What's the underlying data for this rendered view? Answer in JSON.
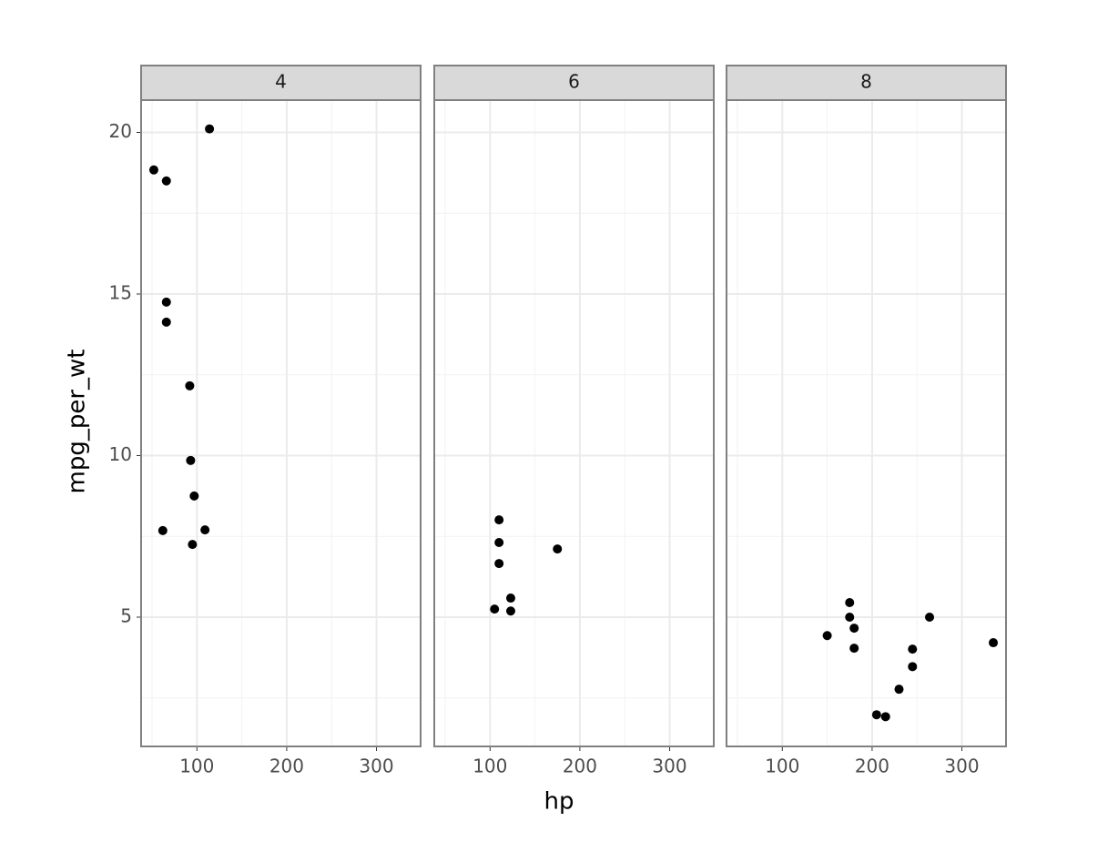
{
  "chart_data": {
    "type": "scatter",
    "xlabel": "hp",
    "ylabel": "mpg_per_wt",
    "xlim": [
      37.85,
      349.15
    ],
    "xticks": [
      100,
      200,
      300
    ],
    "xminor": [
      50,
      150,
      250
    ],
    "ylim": [
      1.0,
      21.0
    ],
    "yticks": [
      5,
      10,
      15,
      20
    ],
    "yminor": [
      2.5,
      7.5,
      12.5,
      17.5
    ],
    "grid": true,
    "series": [
      {
        "name": "4",
        "color": "#000000",
        "x": [
          114,
          52,
          66,
          66,
          66,
          92,
          93,
          97,
          62,
          109,
          95
        ],
        "values": [
          20.11,
          18.84,
          18.5,
          14.75,
          14.13,
          12.16,
          9.85,
          8.75,
          7.68,
          7.7,
          7.25
        ]
      },
      {
        "name": "6",
        "color": "#000000",
        "x": [
          110,
          110,
          110,
          105,
          123,
          123,
          175
        ],
        "values": [
          8.01,
          7.31,
          6.66,
          5.25,
          5.59,
          5.19,
          7.11
        ]
      },
      {
        "name": "8",
        "color": "#000000",
        "x": [
          175,
          175,
          180,
          180,
          150,
          264,
          245,
          245,
          230,
          205,
          215,
          335
        ],
        "values": [
          5.45,
          5.0,
          4.66,
          4.04,
          4.43,
          5.0,
          4.01,
          3.47,
          2.77,
          1.98,
          1.92,
          4.21
        ]
      }
    ]
  }
}
